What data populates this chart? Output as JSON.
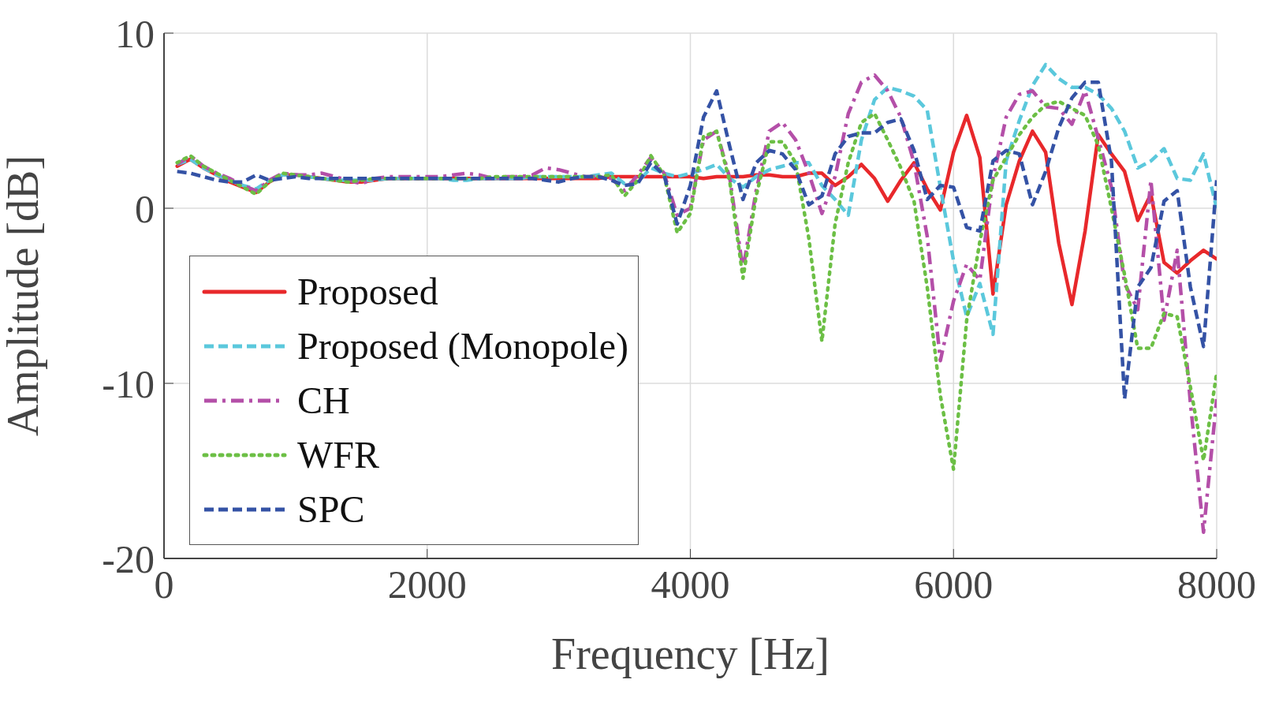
{
  "chart_data": {
    "type": "line",
    "xlabel": "Frequency [Hz]",
    "ylabel": "Amplitude [dB]",
    "x": [
      100,
      200,
      300,
      400,
      500,
      600,
      700,
      800,
      900,
      1000,
      1100,
      1200,
      1300,
      1400,
      1500,
      1600,
      1700,
      1800,
      1900,
      2000,
      2100,
      2200,
      2300,
      2400,
      2500,
      2600,
      2700,
      2800,
      2900,
      3000,
      3100,
      3200,
      3300,
      3400,
      3500,
      3600,
      3700,
      3800,
      3900,
      4000,
      4100,
      4200,
      4300,
      4400,
      4500,
      4600,
      4700,
      4800,
      4900,
      5000,
      5100,
      5200,
      5300,
      5400,
      5500,
      5600,
      5700,
      5800,
      5900,
      6000,
      6100,
      6200,
      6300,
      6400,
      6500,
      6600,
      6700,
      6800,
      6900,
      7000,
      7100,
      7200,
      7300,
      7400,
      7500,
      7600,
      7700,
      7800,
      7900,
      8000
    ],
    "series": [
      {
        "name": "Proposed",
        "color": "#e8282b",
        "line_style": "solid",
        "values": [
          2.4,
          2.8,
          2.3,
          1.9,
          1.5,
          1.2,
          0.9,
          1.5,
          1.9,
          1.9,
          1.8,
          1.7,
          1.6,
          1.5,
          1.5,
          1.6,
          1.7,
          1.7,
          1.7,
          1.7,
          1.7,
          1.7,
          1.7,
          1.7,
          1.7,
          1.7,
          1.7,
          1.7,
          1.7,
          1.7,
          1.7,
          1.7,
          1.7,
          1.8,
          1.8,
          1.8,
          1.8,
          1.8,
          1.8,
          1.8,
          1.7,
          1.8,
          1.8,
          1.8,
          1.9,
          1.9,
          1.8,
          1.8,
          2.0,
          2.0,
          1.3,
          1.8,
          2.5,
          1.7,
          0.4,
          1.6,
          2.6,
          1.1,
          -0.1,
          3.2,
          5.3,
          2.9,
          -4.9,
          0.2,
          2.7,
          4.4,
          3.2,
          -2.0,
          -5.5,
          -1.3,
          4.2,
          3.1,
          2.1,
          -0.7,
          0.8,
          -3.1,
          -3.7,
          -3.0,
          -2.4,
          -2.9
        ]
      },
      {
        "name": "Proposed (Monopole)",
        "color": "#5bc8dc",
        "line_style": "dashed",
        "values": [
          2.5,
          2.8,
          2.3,
          1.9,
          1.6,
          1.3,
          1.1,
          1.6,
          1.9,
          1.9,
          1.8,
          1.7,
          1.6,
          1.6,
          1.6,
          1.6,
          1.7,
          1.7,
          1.7,
          1.7,
          1.7,
          1.6,
          1.6,
          1.7,
          1.7,
          1.7,
          1.7,
          1.8,
          1.8,
          1.8,
          1.8,
          1.8,
          1.9,
          2.0,
          1.4,
          1.5,
          2.3,
          2.0,
          1.8,
          2.0,
          2.2,
          2.5,
          1.7,
          1.2,
          1.8,
          2.2,
          2.4,
          2.6,
          2.6,
          1.3,
          0.5,
          -0.4,
          3.9,
          6.2,
          6.9,
          6.7,
          6.4,
          5.6,
          1.2,
          -3.0,
          -6.2,
          -4.3,
          -7.2,
          2.7,
          5.0,
          7.0,
          8.2,
          7.4,
          6.9,
          6.9,
          6.5,
          5.7,
          4.4,
          2.3,
          2.7,
          3.4,
          1.7,
          1.6,
          3.1,
          0.0
        ]
      },
      {
        "name": "CH",
        "color": "#b44fa8",
        "line_style": "dashdot",
        "values": [
          2.5,
          3.0,
          2.4,
          2.0,
          1.7,
          1.3,
          1.0,
          1.6,
          2.0,
          1.9,
          1.9,
          2.0,
          1.8,
          1.6,
          1.4,
          1.7,
          1.8,
          1.8,
          1.8,
          1.8,
          1.8,
          1.9,
          2.0,
          1.9,
          1.7,
          1.8,
          1.8,
          1.9,
          2.3,
          2.2,
          2.0,
          1.8,
          1.8,
          1.7,
          1.0,
          1.9,
          2.9,
          2.0,
          -0.4,
          0.0,
          3.9,
          4.4,
          1.7,
          -3.5,
          1.0,
          4.4,
          4.9,
          3.9,
          2.0,
          -0.3,
          1.8,
          5.4,
          7.2,
          7.6,
          6.7,
          5.2,
          2.6,
          -1.6,
          -8.7,
          -5.3,
          -3.2,
          -4.1,
          1.7,
          5.2,
          6.5,
          6.7,
          5.8,
          5.7,
          4.8,
          6.7,
          4.0,
          1.2,
          -4.3,
          -5.8,
          1.6,
          -6.4,
          -2.4,
          -11.1,
          -18.5,
          -10.9
        ]
      },
      {
        "name": "WFR",
        "color": "#6cbf45",
        "line_style": "dotted",
        "values": [
          2.6,
          3.0,
          2.4,
          2.0,
          1.6,
          1.2,
          0.8,
          1.5,
          2.0,
          1.9,
          1.8,
          1.7,
          1.6,
          1.5,
          1.6,
          1.7,
          1.7,
          1.7,
          1.7,
          1.7,
          1.7,
          1.7,
          1.7,
          1.7,
          1.8,
          1.8,
          1.8,
          1.8,
          1.8,
          1.8,
          1.8,
          1.8,
          1.8,
          1.9,
          0.7,
          1.6,
          3.0,
          1.9,
          -1.4,
          -0.3,
          4.1,
          4.4,
          1.5,
          -4.0,
          0.7,
          3.8,
          3.8,
          2.6,
          -1.7,
          -7.6,
          -0.9,
          2.6,
          4.9,
          5.4,
          3.9,
          2.3,
          0.4,
          -4.5,
          -10.7,
          -14.9,
          -6.4,
          -1.9,
          1.6,
          2.9,
          4.2,
          5.2,
          5.9,
          6.1,
          5.7,
          5.3,
          3.6,
          0.0,
          -3.8,
          -8.0,
          -8.0,
          -6.0,
          -6.2,
          -10.2,
          -14.4,
          -9.4
        ]
      },
      {
        "name": "SPC",
        "color": "#3452a5",
        "line_style": "dashed",
        "values": [
          2.1,
          2.0,
          1.8,
          1.6,
          1.5,
          1.5,
          1.9,
          1.6,
          1.7,
          1.8,
          1.7,
          1.7,
          1.7,
          1.7,
          1.7,
          1.7,
          1.7,
          1.7,
          1.7,
          1.7,
          1.7,
          1.7,
          1.7,
          1.7,
          1.7,
          1.7,
          1.7,
          1.7,
          1.6,
          1.5,
          1.7,
          1.8,
          1.8,
          1.6,
          1.3,
          1.4,
          2.6,
          1.9,
          -0.9,
          1.3,
          5.2,
          6.7,
          3.5,
          0.5,
          2.6,
          3.3,
          3.1,
          2.2,
          0.2,
          0.7,
          3.1,
          4.1,
          4.3,
          4.3,
          4.9,
          5.1,
          3.3,
          0.5,
          1.3,
          1.2,
          -1.1,
          -1.3,
          2.7,
          3.3,
          3.1,
          0.2,
          2.1,
          4.6,
          6.3,
          7.2,
          7.2,
          2.7,
          -10.9,
          -4.5,
          -3.4,
          0.4,
          1.0,
          -4.5,
          -7.9,
          1.6
        ]
      }
    ],
    "xlim": [
      0,
      8000
    ],
    "xticks": [
      0,
      2000,
      4000,
      6000,
      8000
    ],
    "ylim": [
      -20,
      10
    ],
    "yticks": [
      -20,
      -10,
      0,
      10
    ],
    "grid": true,
    "legend": "bottom left",
    "marker": "none"
  }
}
